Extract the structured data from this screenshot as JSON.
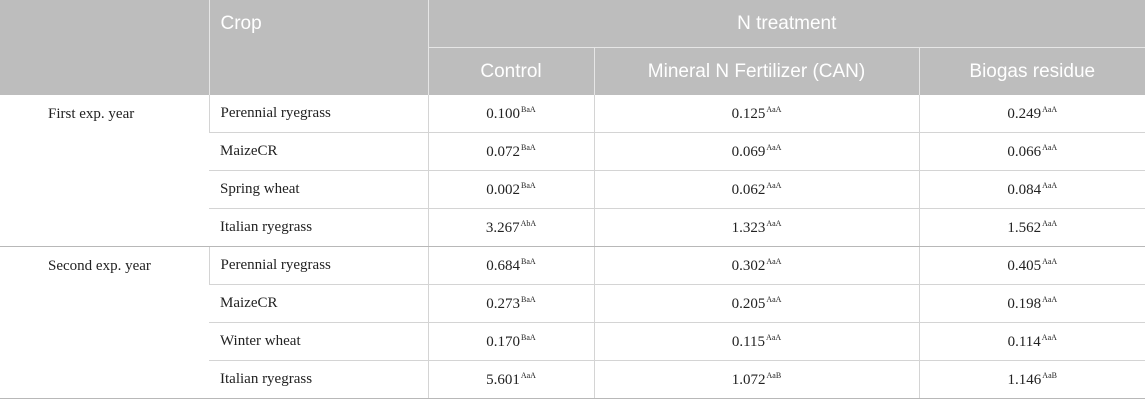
{
  "header": {
    "crop": "Crop",
    "n_treatment": "N treatment",
    "columns": [
      "Control",
      "Mineral N Fertilizer (CAN)",
      "Biogas residue"
    ]
  },
  "groups": [
    {
      "label": "First exp. year",
      "rows": [
        {
          "crop": "Perennial ryegrass",
          "values": [
            {
              "v": "0.100",
              "s": "BaA"
            },
            {
              "v": "0.125",
              "s": "AaA"
            },
            {
              "v": "0.249",
              "s": "AaA"
            }
          ]
        },
        {
          "crop": "MaizeCR",
          "values": [
            {
              "v": "0.072",
              "s": "BaA"
            },
            {
              "v": "0.069",
              "s": "AaA"
            },
            {
              "v": "0.066",
              "s": "AaA"
            }
          ]
        },
        {
          "crop": "Spring wheat",
          "values": [
            {
              "v": "0.002",
              "s": "BaA"
            },
            {
              "v": "0.062",
              "s": "AaA"
            },
            {
              "v": "0.084",
              "s": "AaA"
            }
          ]
        },
        {
          "crop": "Italian ryegrass",
          "values": [
            {
              "v": "3.267",
              "s": "AbA"
            },
            {
              "v": "1.323",
              "s": "AaA"
            },
            {
              "v": "1.562",
              "s": "AaA"
            }
          ]
        }
      ]
    },
    {
      "label": "Second exp. year",
      "rows": [
        {
          "crop": "Perennial ryegrass",
          "values": [
            {
              "v": "0.684",
              "s": "BaA"
            },
            {
              "v": "0.302",
              "s": "AaA"
            },
            {
              "v": "0.405",
              "s": "AaA"
            }
          ]
        },
        {
          "crop": "MaizeCR",
          "values": [
            {
              "v": "0.273",
              "s": "BaA"
            },
            {
              "v": "0.205",
              "s": "AaA"
            },
            {
              "v": "0.198",
              "s": "AaA"
            }
          ]
        },
        {
          "crop": "Winter wheat",
          "values": [
            {
              "v": "0.170",
              "s": "BaA"
            },
            {
              "v": "0.115",
              "s": "AaA"
            },
            {
              "v": "0.114",
              "s": "AaA"
            }
          ]
        },
        {
          "crop": "Italian ryegrass",
          "values": [
            {
              "v": "5.601",
              "s": "AaA"
            },
            {
              "v": "1.072",
              "s": "AaB"
            },
            {
              "v": "1.146",
              "s": "AaB"
            }
          ]
        }
      ]
    }
  ]
}
